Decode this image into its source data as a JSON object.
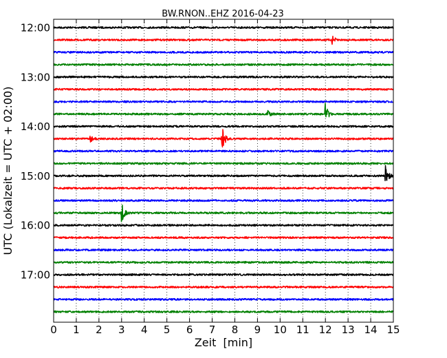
{
  "chart_data": {
    "type": "line",
    "title": "BW.RNON..EHZ 2016-04-23",
    "xlabel": "Zeit  [min]",
    "ylabel": "UTC (Lokalzeit = UTC + 02:00)",
    "xlim": [
      0,
      15
    ],
    "x_ticks": [
      "0",
      "1",
      "2",
      "3",
      "4",
      "5",
      "6",
      "7",
      "8",
      "9",
      "10",
      "11",
      "12",
      "13",
      "14",
      "15"
    ],
    "y_ticks": [
      "12:00",
      "13:00",
      "14:00",
      "15:00",
      "16:00",
      "17:00"
    ],
    "y_tick_rows": [
      0,
      4,
      8,
      12,
      16,
      20
    ],
    "grid": "vertical dotted at each minute",
    "line_colors": [
      "#000000",
      "#ff0000",
      "#0000ff",
      "#008000"
    ],
    "rows": [
      {
        "time": "12:00",
        "color": "#000000",
        "events": []
      },
      {
        "time": "12:15",
        "color": "#ff0000",
        "events": [
          {
            "min": 12.3,
            "amp": 0.35
          }
        ]
      },
      {
        "time": "12:30",
        "color": "#0000ff",
        "events": []
      },
      {
        "time": "12:45",
        "color": "#008000",
        "events": []
      },
      {
        "time": "13:00",
        "color": "#000000",
        "events": []
      },
      {
        "time": "13:15",
        "color": "#ff0000",
        "events": []
      },
      {
        "time": "13:30",
        "color": "#0000ff",
        "events": []
      },
      {
        "time": "13:45",
        "color": "#008000",
        "events": [
          {
            "min": 9.45,
            "amp": 0.3
          },
          {
            "min": 12.0,
            "amp": 1.0
          }
        ]
      },
      {
        "time": "14:00",
        "color": "#000000",
        "events": []
      },
      {
        "time": "14:15",
        "color": "#ff0000",
        "events": [
          {
            "min": 1.6,
            "amp": 0.3
          },
          {
            "min": 7.45,
            "amp": 1.0
          }
        ]
      },
      {
        "time": "14:30",
        "color": "#0000ff",
        "events": []
      },
      {
        "time": "14:45",
        "color": "#008000",
        "events": []
      },
      {
        "time": "15:00",
        "color": "#000000",
        "events": [
          {
            "min": 14.65,
            "amp": 1.0
          }
        ]
      },
      {
        "time": "15:15",
        "color": "#ff0000",
        "events": []
      },
      {
        "time": "15:30",
        "color": "#0000ff",
        "events": []
      },
      {
        "time": "15:45",
        "color": "#008000",
        "events": [
          {
            "min": 3.0,
            "amp": 0.9
          }
        ]
      },
      {
        "time": "16:00",
        "color": "#000000",
        "events": []
      },
      {
        "time": "16:15",
        "color": "#ff0000",
        "events": []
      },
      {
        "time": "16:30",
        "color": "#0000ff",
        "events": []
      },
      {
        "time": "16:45",
        "color": "#008000",
        "events": []
      },
      {
        "time": "17:00",
        "color": "#000000",
        "events": []
      },
      {
        "time": "17:15",
        "color": "#ff0000",
        "events": []
      },
      {
        "time": "17:30",
        "color": "#0000ff",
        "events": []
      },
      {
        "time": "17:45",
        "color": "#008000",
        "events": []
      }
    ]
  }
}
